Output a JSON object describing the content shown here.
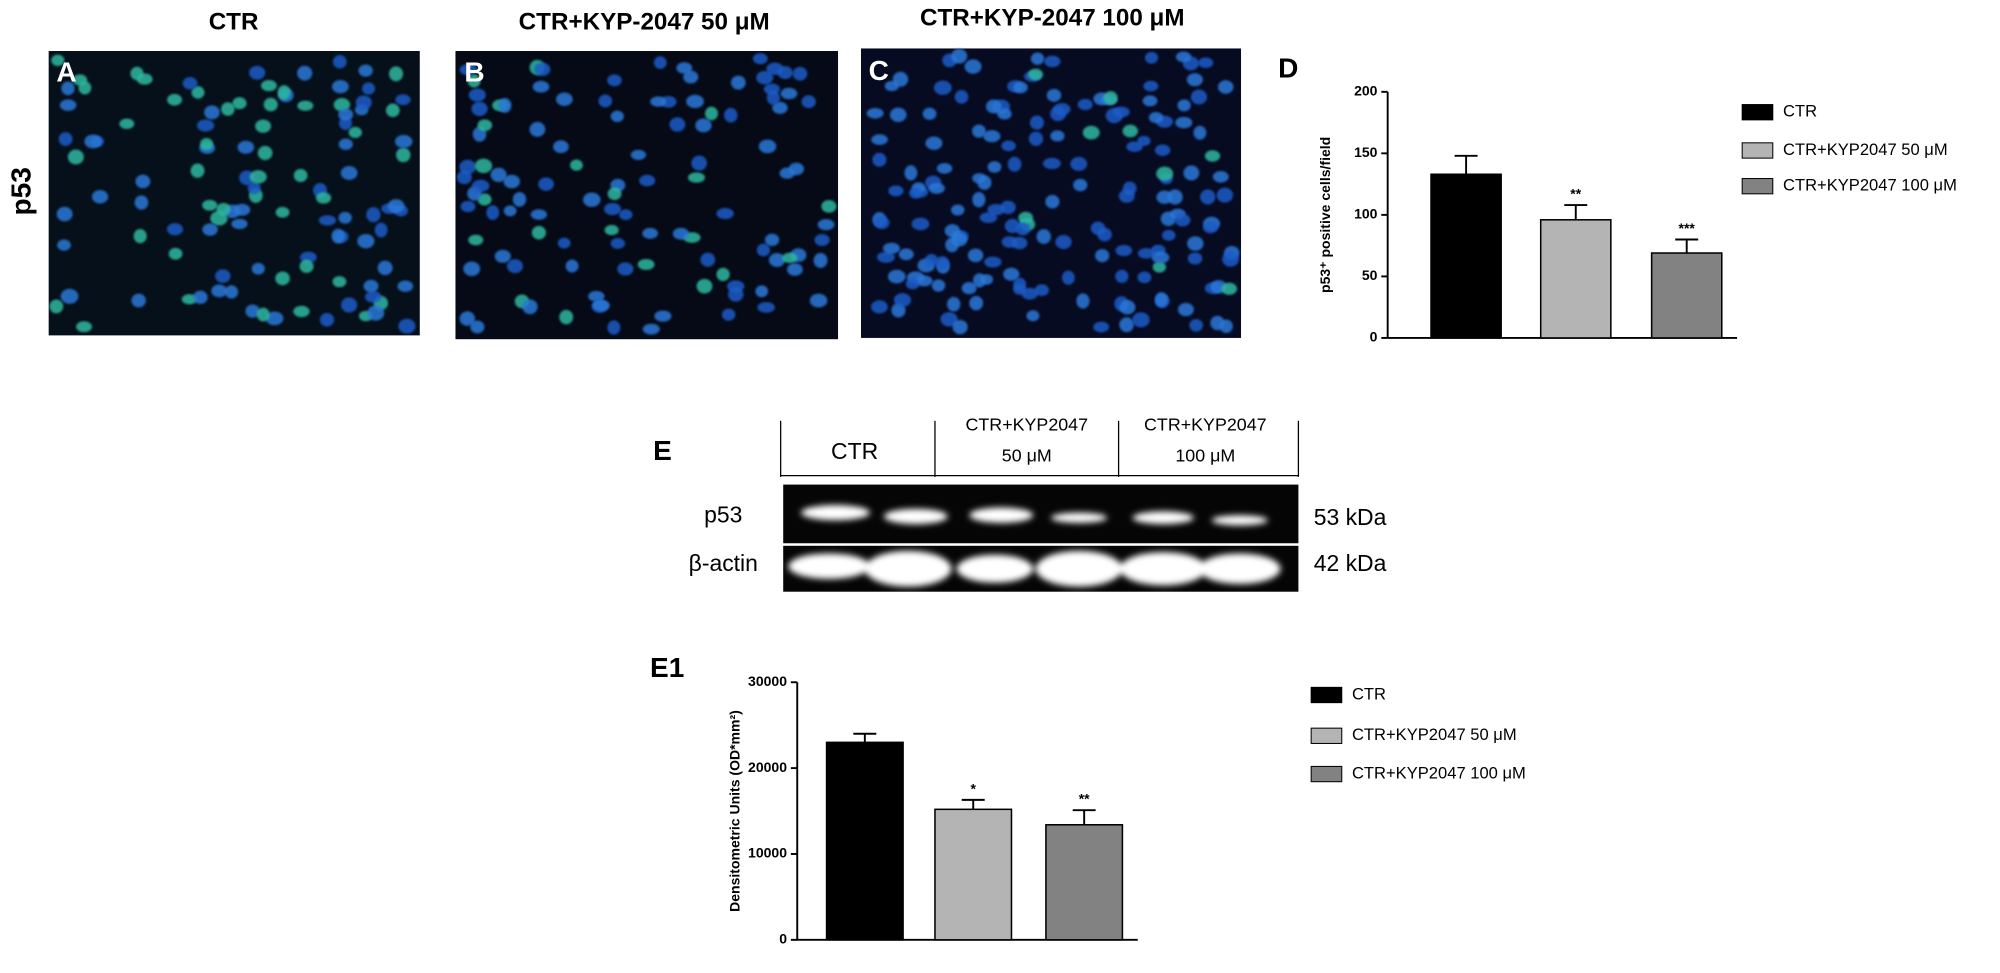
{
  "figure": {
    "row_label": "p53",
    "panels": [
      {
        "label": "A",
        "title": "CTR"
      },
      {
        "label": "B",
        "title": "CTR+KYP-2047 50 μM"
      },
      {
        "label": "C",
        "title": "CTR+KYP-2047 100 μM"
      }
    ]
  },
  "blot": {
    "label": "E",
    "groups": [
      [
        "CTR"
      ],
      [
        "CTR+KYP2047",
        "50 μM"
      ],
      [
        "CTR+KYP2047",
        "100 μM"
      ]
    ],
    "rows": [
      {
        "name": "p53",
        "size": "53 kDa"
      },
      {
        "name": "β-actin",
        "size": "42 kDa"
      }
    ]
  },
  "chart_data": [
    {
      "type": "bar",
      "panel_label": "D",
      "ylabel": "p53⁺ positive cells/field",
      "categories": [
        "CTR",
        "CTR+KYP2047 50 μM",
        "CTR+KYP2047 100 μM"
      ],
      "colors": [
        "#000000",
        "#b4b4b4",
        "#828282"
      ],
      "values": [
        133,
        96,
        69
      ],
      "errors": [
        15,
        12,
        11
      ],
      "significance": [
        null,
        "**",
        "***"
      ],
      "ylim": [
        0,
        200
      ],
      "yticks": [
        0,
        50,
        100,
        150,
        200
      ]
    },
    {
      "type": "bar",
      "panel_label": "E1",
      "ylabel": "Densitometric Units (OD*mm²)",
      "categories": [
        "CTR",
        "CTR+KYP2047 50 μM",
        "CTR+KYP2047 100 μM"
      ],
      "colors": [
        "#000000",
        "#b4b4b4",
        "#828282"
      ],
      "values": [
        23000,
        15200,
        13400
      ],
      "errors": [
        1000,
        1100,
        1700
      ],
      "significance": [
        null,
        "*",
        "**"
      ],
      "ylim": [
        0,
        30000
      ],
      "yticks": [
        0,
        10000,
        20000,
        30000
      ]
    }
  ]
}
